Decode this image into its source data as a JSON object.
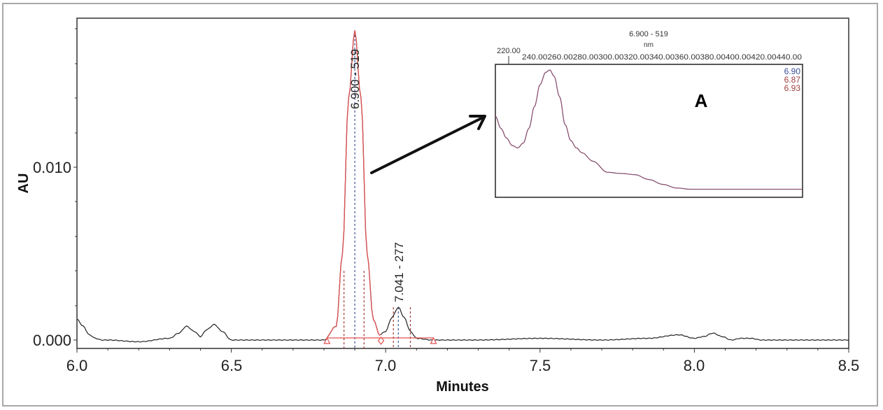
{
  "chart_data": [
    {
      "type": "line",
      "title": "",
      "xlabel": "Minutes",
      "ylabel": "AU",
      "xlim": [
        6.0,
        8.5
      ],
      "ylim": [
        -0.0007,
        0.0186
      ],
      "x_ticks": [
        "6.0",
        "6.5",
        "7.0",
        "7.5",
        "8.0",
        "8.5"
      ],
      "y_ticks": [
        "0.000",
        "0.010"
      ],
      "grid": false,
      "series": [
        {
          "name": "chromatogram",
          "color": "#222222",
          "x": [
            6.0,
            6.02,
            6.04,
            6.06,
            6.08,
            6.1,
            6.2,
            6.3,
            6.33,
            6.355,
            6.38,
            6.4,
            6.42,
            6.445,
            6.47,
            6.5,
            6.55,
            6.7,
            6.8,
            6.84,
            6.86,
            6.88,
            6.9,
            6.92,
            6.94,
            6.96,
            6.98,
            7.0,
            7.02,
            7.041,
            7.06,
            7.08,
            7.1,
            7.15,
            7.3,
            7.5,
            7.7,
            7.85,
            7.95,
            8.0,
            8.03,
            8.06,
            8.09,
            8.12,
            8.15,
            8.18,
            8.22,
            8.3,
            8.5
          ],
          "y": [
            0.0012,
            0.0008,
            0.0003,
            0.0001,
            0.0,
            0.0,
            -0.0001,
            0.0001,
            0.0004,
            0.0008,
            0.0005,
            0.0002,
            0.0006,
            0.0009,
            0.0005,
            0.0,
            0.0,
            0.0,
            0.0,
            0.0008,
            0.005,
            0.014,
            0.0179,
            0.014,
            0.005,
            0.0012,
            0.0003,
            0.0005,
            0.0013,
            0.0019,
            0.0013,
            0.0005,
            0.0001,
            0.0,
            0.0,
            0.0001,
            0.0,
            0.0001,
            0.0003,
            0.0001,
            0.0002,
            0.0004,
            0.0002,
            0.0,
            0.0001,
            0.0001,
            0.0,
            0.0,
            0.0
          ]
        }
      ],
      "peaks": [
        {
          "label": "6.900 - 519",
          "rt": 6.9,
          "height": 0.0179,
          "integration_color": "#e05050",
          "start": 6.81,
          "end": 6.985,
          "dashed_lines": [
            6.865,
            6.9,
            6.93
          ]
        },
        {
          "label": "7.041 - 277",
          "rt": 7.041,
          "height": 0.0019,
          "start": 6.985,
          "end": 7.155,
          "dashed_lines": [
            7.025,
            7.041,
            7.08
          ]
        }
      ],
      "baseline_markers": [
        {
          "x": 6.81,
          "shape": "triangle"
        },
        {
          "x": 6.985,
          "shape": "diamond"
        },
        {
          "x": 7.155,
          "shape": "triangle"
        }
      ],
      "annotations": [
        "arrow from main peak to inset spectrum A"
      ]
    },
    {
      "type": "line",
      "title": "6.900 - 519",
      "xlabel": "nm",
      "ylabel": "",
      "panel_label": "A",
      "xlim": [
        220,
        440
      ],
      "x_ticks": [
        "220.00",
        "240.00",
        "260.00",
        "280.00",
        "300.00",
        "320.00",
        "340.00",
        "360.00",
        "380.00",
        "400.00",
        "420.00",
        "440.00"
      ],
      "legend": [
        {
          "label": "6.90",
          "color": "#3a4f9a"
        },
        {
          "label": "6.87",
          "color": "#a04040"
        },
        {
          "label": "6.93",
          "color": "#a04040"
        }
      ],
      "series": [
        {
          "name": "spectrum",
          "x": [
            220,
            224,
            228,
            232,
            236,
            240,
            244,
            248,
            252,
            256,
            259,
            262,
            266,
            270,
            274,
            278,
            282,
            290,
            300,
            310,
            320,
            330,
            340,
            350,
            360,
            380,
            400,
            420,
            440
          ],
          "y_relative": [
            0.62,
            0.52,
            0.44,
            0.38,
            0.36,
            0.4,
            0.52,
            0.7,
            0.88,
            0.98,
            1.0,
            0.95,
            0.78,
            0.55,
            0.42,
            0.36,
            0.32,
            0.25,
            0.16,
            0.15,
            0.14,
            0.1,
            0.06,
            0.03,
            0.02,
            0.02,
            0.02,
            0.02,
            0.02
          ]
        }
      ]
    }
  ],
  "axes": {
    "x_title": "Minutes",
    "y_title": "AU",
    "x_ticks": [
      "6.0",
      "6.5",
      "7.0",
      "7.5",
      "8.0",
      "8.5"
    ],
    "y_ticks": [
      "0.000",
      "0.010"
    ]
  },
  "peak_labels": {
    "main": "6.900 - 519",
    "secondary": "7.041 - 277"
  },
  "inset": {
    "title": "6.900 - 519",
    "unit": "nm",
    "first_tick": "220.00",
    "tick_row": "240.00260.00280.00300.00320.00340.00360.00380.00400.00420.00440.00",
    "panel_label": "A",
    "legend": [
      "6.90",
      "6.87",
      "6.93"
    ]
  }
}
